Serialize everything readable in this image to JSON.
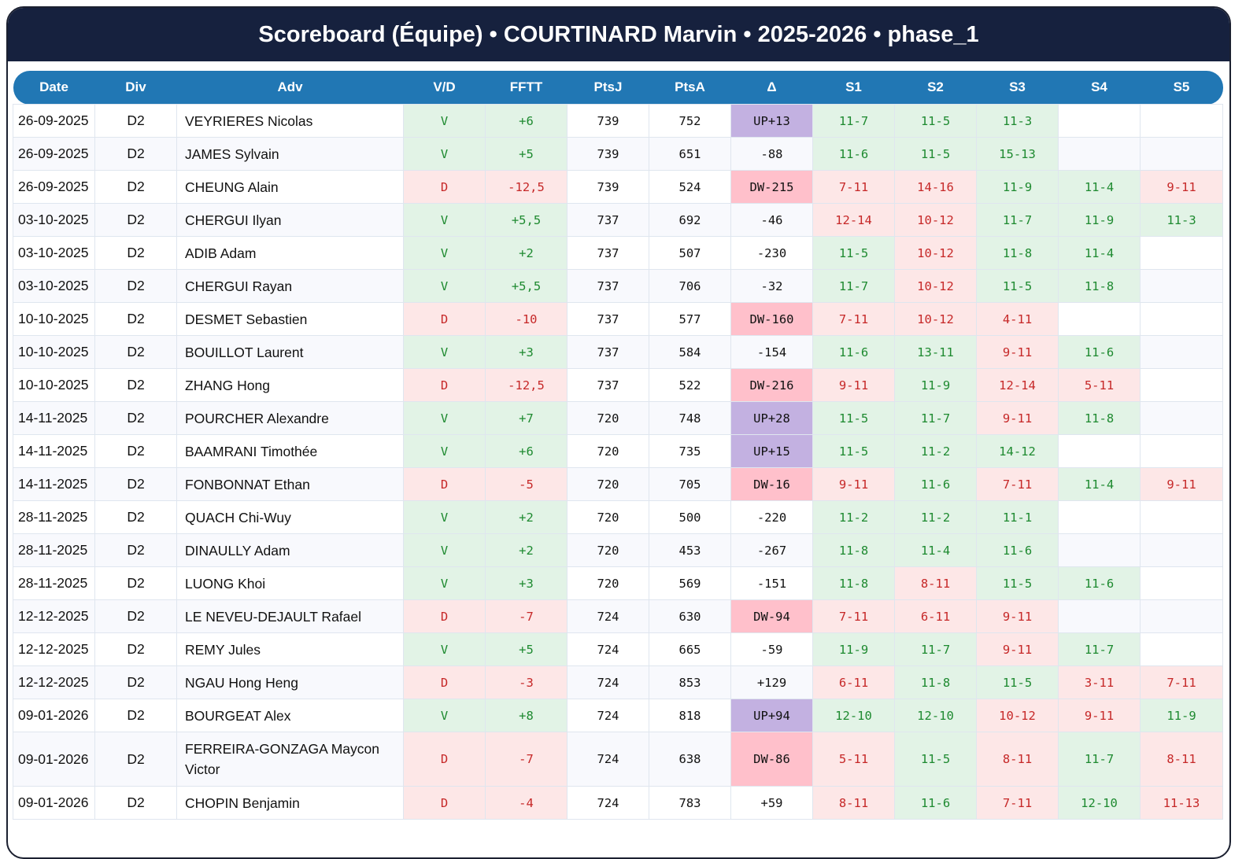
{
  "title": "Scoreboard (Équipe) • COURTINARD Marvin • 2025-2026 • phase_1",
  "columns": [
    "Date",
    "Div",
    "Adv",
    "V/D",
    "FFTT",
    "PtsJ",
    "PtsA",
    "Δ",
    "S1",
    "S2",
    "S3",
    "S4",
    "S5"
  ],
  "colors": {
    "header_bg": "#16213e",
    "column_header_bg": "#2177b4",
    "win_bg": "#e2f3e6",
    "win_text": "#1e8a30",
    "loss_bg": "#fde7e7",
    "loss_text": "#c62828",
    "up_bg": "#c3b1e1",
    "down_bg": "#ffc0cb"
  },
  "rows": [
    [
      "26-09-2025",
      "D2",
      "VEYRIERES Nicolas",
      "V",
      "+6",
      "739",
      "752",
      "UP+13",
      [
        "11-7",
        "11-5",
        "11-3",
        "",
        ""
      ]
    ],
    [
      "26-09-2025",
      "D2",
      "JAMES Sylvain",
      "V",
      "+5",
      "739",
      "651",
      "-88",
      [
        "11-6",
        "11-5",
        "15-13",
        "",
        ""
      ]
    ],
    [
      "26-09-2025",
      "D2",
      "CHEUNG Alain",
      "D",
      "-12,5",
      "739",
      "524",
      "DW-215",
      [
        "7-11",
        "14-16",
        "11-9",
        "11-4",
        "9-11"
      ]
    ],
    [
      "03-10-2025",
      "D2",
      "CHERGUI Ilyan",
      "V",
      "+5,5",
      "737",
      "692",
      "-46",
      [
        "12-14",
        "10-12",
        "11-7",
        "11-9",
        "11-3"
      ]
    ],
    [
      "03-10-2025",
      "D2",
      "ADIB Adam",
      "V",
      "+2",
      "737",
      "507",
      "-230",
      [
        "11-5",
        "10-12",
        "11-8",
        "11-4",
        ""
      ]
    ],
    [
      "03-10-2025",
      "D2",
      "CHERGUI Rayan",
      "V",
      "+5,5",
      "737",
      "706",
      "-32",
      [
        "11-7",
        "10-12",
        "11-5",
        "11-8",
        ""
      ]
    ],
    [
      "10-10-2025",
      "D2",
      "DESMET Sebastien",
      "D",
      "-10",
      "737",
      "577",
      "DW-160",
      [
        "7-11",
        "10-12",
        "4-11",
        "",
        ""
      ]
    ],
    [
      "10-10-2025",
      "D2",
      "BOUILLOT Laurent",
      "V",
      "+3",
      "737",
      "584",
      "-154",
      [
        "11-6",
        "13-11",
        "9-11",
        "11-6",
        ""
      ]
    ],
    [
      "10-10-2025",
      "D2",
      "ZHANG Hong",
      "D",
      "-12,5",
      "737",
      "522",
      "DW-216",
      [
        "9-11",
        "11-9",
        "12-14",
        "5-11",
        ""
      ]
    ],
    [
      "14-11-2025",
      "D2",
      "POURCHER Alexandre",
      "V",
      "+7",
      "720",
      "748",
      "UP+28",
      [
        "11-5",
        "11-7",
        "9-11",
        "11-8",
        ""
      ]
    ],
    [
      "14-11-2025",
      "D2",
      "BAAMRANI Timothée",
      "V",
      "+6",
      "720",
      "735",
      "UP+15",
      [
        "11-5",
        "11-2",
        "14-12",
        "",
        ""
      ]
    ],
    [
      "14-11-2025",
      "D2",
      "FONBONNAT Ethan",
      "D",
      "-5",
      "720",
      "705",
      "DW-16",
      [
        "9-11",
        "11-6",
        "7-11",
        "11-4",
        "9-11"
      ]
    ],
    [
      "28-11-2025",
      "D2",
      "QUACH Chi-Wuy",
      "V",
      "+2",
      "720",
      "500",
      "-220",
      [
        "11-2",
        "11-2",
        "11-1",
        "",
        ""
      ]
    ],
    [
      "28-11-2025",
      "D2",
      "DINAULLY Adam",
      "V",
      "+2",
      "720",
      "453",
      "-267",
      [
        "11-8",
        "11-4",
        "11-6",
        "",
        ""
      ]
    ],
    [
      "28-11-2025",
      "D2",
      "LUONG Khoi",
      "V",
      "+3",
      "720",
      "569",
      "-151",
      [
        "11-8",
        "8-11",
        "11-5",
        "11-6",
        ""
      ]
    ],
    [
      "12-12-2025",
      "D2",
      "LE NEVEU-DEJAULT Rafael",
      "D",
      "-7",
      "724",
      "630",
      "DW-94",
      [
        "7-11",
        "6-11",
        "9-11",
        "",
        ""
      ]
    ],
    [
      "12-12-2025",
      "D2",
      "REMY Jules",
      "V",
      "+5",
      "724",
      "665",
      "-59",
      [
        "11-9",
        "11-7",
        "9-11",
        "11-7",
        ""
      ]
    ],
    [
      "12-12-2025",
      "D2",
      "NGAU Hong Heng",
      "D",
      "-3",
      "724",
      "853",
      "+129",
      [
        "6-11",
        "11-8",
        "11-5",
        "3-11",
        "7-11"
      ]
    ],
    [
      "09-01-2026",
      "D2",
      "BOURGEAT Alex",
      "V",
      "+8",
      "724",
      "818",
      "UP+94",
      [
        "12-10",
        "12-10",
        "10-12",
        "9-11",
        "11-9"
      ]
    ],
    [
      "09-01-2026",
      "D2",
      "FERREIRA-GONZAGA Maycon Victor",
      "D",
      "-7",
      "724",
      "638",
      "DW-86",
      [
        "5-11",
        "11-5",
        "8-11",
        "11-7",
        "8-11"
      ]
    ],
    [
      "09-01-2026",
      "D2",
      "CHOPIN Benjamin",
      "D",
      "-4",
      "724",
      "783",
      "+59",
      [
        "8-11",
        "11-6",
        "7-11",
        "12-10",
        "11-13"
      ]
    ]
  ]
}
